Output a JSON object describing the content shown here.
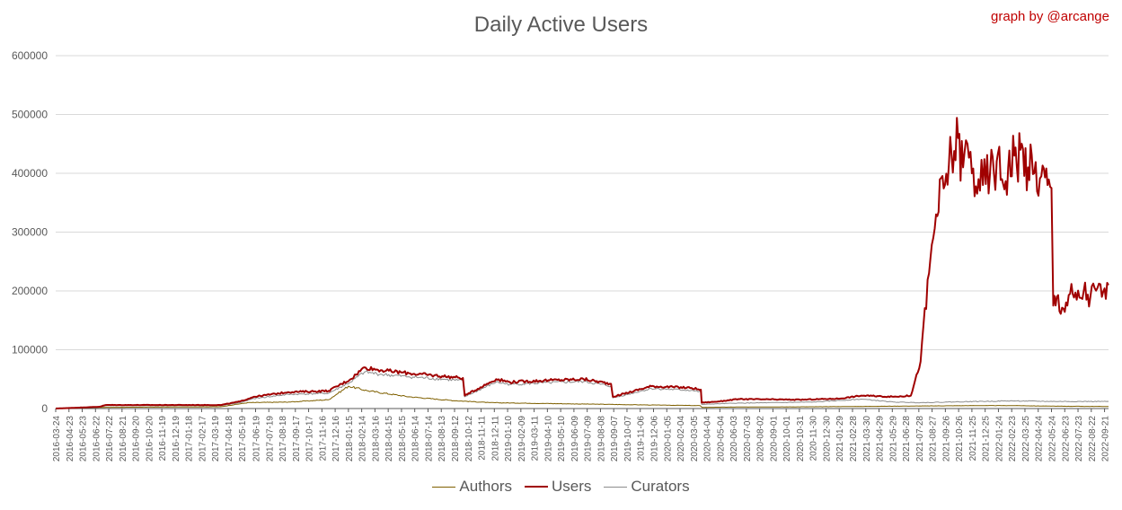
{
  "title": "Daily Active Users",
  "credit": "graph by @arcange",
  "colors": {
    "Authors": "#7f6000",
    "Users": "#a00000",
    "Curators": "#8c8c8c",
    "grid": "#d9d9d9",
    "axis": "#595959"
  },
  "chart_data": {
    "type": "line",
    "title": "Daily Active Users",
    "xlabel": "",
    "ylabel": "",
    "ylim": [
      0,
      600000
    ],
    "yticks": [
      "0",
      "100000",
      "200000",
      "300000",
      "400000",
      "500000",
      "600000"
    ],
    "xtick_labels": [
      "2016-03-24",
      "2016-04-23",
      "2016-05-23",
      "2016-06-22",
      "2016-07-22",
      "2016-08-21",
      "2016-09-20",
      "2016-10-20",
      "2016-11-19",
      "2016-12-19",
      "2017-01-18",
      "2017-02-17",
      "2017-03-19",
      "2017-04-18",
      "2017-05-19",
      "2017-06-19",
      "2017-07-19",
      "2017-08-18",
      "2017-09-17",
      "2017-10-17",
      "2017-11-16",
      "2017-12-16",
      "2018-01-15",
      "2018-02-14",
      "2018-03-16",
      "2018-04-15",
      "2018-05-15",
      "2018-06-14",
      "2018-07-14",
      "2018-08-13",
      "2018-09-12",
      "2018-10-12",
      "2018-11-11",
      "2018-12-11",
      "2019-01-10",
      "2019-02-09",
      "2019-03-11",
      "2019-04-10",
      "2019-05-10",
      "2019-06-09",
      "2019-07-09",
      "2019-08-08",
      "2019-09-07",
      "2019-10-07",
      "2019-11-06",
      "2019-12-06",
      "2020-01-05",
      "2020-02-04",
      "2020-03-05",
      "2020-04-04",
      "2020-05-04",
      "2020-06-03",
      "2020-07-03",
      "2020-08-02",
      "2020-09-01",
      "2020-10-01",
      "2020-10-31",
      "2020-11-30",
      "2020-12-30",
      "2021-01-29",
      "2021-02-28",
      "2021-03-30",
      "2021-04-29",
      "2021-05-29",
      "2021-06-28",
      "2021-07-28",
      "2021-08-27",
      "2021-09-26",
      "2021-10-26",
      "2021-11-25",
      "2021-12-25",
      "2022-01-24",
      "2022-02-23",
      "2022-03-25",
      "2022-04-24",
      "2022-05-24",
      "2022-06-23",
      "2022-07-23",
      "2022-08-22",
      "2022-09-21"
    ],
    "grid": true,
    "legend": "bottom",
    "series": [
      {
        "name": "Authors",
        "x": [
          "2016-03-24",
          "2016-07-01",
          "2017-04-01",
          "2017-06-01",
          "2017-09-01",
          "2017-12-01",
          "2018-01-15",
          "2018-03-01",
          "2018-06-01",
          "2018-09-01",
          "2018-12-01",
          "2019-03-01",
          "2019-06-01",
          "2019-09-01",
          "2019-12-01",
          "2020-03-20",
          "2020-03-25",
          "2020-06-01",
          "2020-12-01",
          "2021-06-01",
          "2021-09-01",
          "2021-12-01",
          "2022-03-01",
          "2022-06-01",
          "2022-09-30"
        ],
        "values": [
          0,
          2000,
          3000,
          10000,
          11000,
          15000,
          38000,
          30000,
          20000,
          14000,
          10000,
          9000,
          8000,
          7000,
          6000,
          5000,
          2000,
          2500,
          3000,
          4000,
          4500,
          5000,
          5000,
          4000,
          3500
        ]
      },
      {
        "name": "Users",
        "x": [
          "2016-03-24",
          "2016-07-01",
          "2016-07-15",
          "2017-04-01",
          "2017-05-15",
          "2017-06-15",
          "2017-09-01",
          "2017-12-01",
          "2018-01-20",
          "2018-02-20",
          "2018-04-01",
          "2018-06-01",
          "2018-08-15",
          "2018-10-01",
          "2018-10-05",
          "2018-12-15",
          "2019-01-15",
          "2019-04-15",
          "2019-07-01",
          "2019-09-01",
          "2019-09-05",
          "2019-12-01",
          "2020-03-01",
          "2020-03-22",
          "2020-03-24",
          "2020-05-01",
          "2020-06-15",
          "2020-11-01",
          "2021-02-01",
          "2021-03-20",
          "2021-06-01",
          "2021-07-10",
          "2021-08-01",
          "2021-08-20",
          "2021-09-05",
          "2021-09-25",
          "2021-10-10",
          "2021-10-25",
          "2021-11-05",
          "2021-11-15",
          "2021-11-25",
          "2021-12-10",
          "2021-12-20",
          "2022-01-05",
          "2022-01-20",
          "2022-02-01",
          "2022-02-15",
          "2022-03-01",
          "2022-03-15",
          "2022-04-01",
          "2022-04-15",
          "2022-05-01",
          "2022-05-15",
          "2022-05-24",
          "2022-05-28",
          "2022-06-05",
          "2022-06-20",
          "2022-07-05",
          "2022-07-20",
          "2022-08-05",
          "2022-08-20",
          "2022-09-05",
          "2022-09-15",
          "2022-09-30"
        ],
        "values": [
          0,
          3000,
          6000,
          6000,
          12000,
          20000,
          28000,
          30000,
          50000,
          70000,
          65000,
          60000,
          55000,
          52000,
          22000,
          50000,
          45000,
          48000,
          50000,
          42000,
          20000,
          38000,
          35000,
          32000,
          10000,
          12000,
          16000,
          15000,
          17000,
          22000,
          20000,
          22000,
          80000,
          230000,
          330000,
          380000,
          430000,
          460000,
          410000,
          450000,
          400000,
          390000,
          380000,
          400000,
          420000,
          390000,
          410000,
          430000,
          440000,
          410000,
          400000,
          395000,
          380000,
          375000,
          175000,
          190000,
          170000,
          195000,
          185000,
          200000,
          190000,
          205000,
          190000,
          210000
        ]
      },
      {
        "name": "Curators",
        "x": [
          "2016-03-24",
          "2016-07-01",
          "2016-07-15",
          "2017-04-01",
          "2017-05-15",
          "2017-06-15",
          "2017-09-01",
          "2017-12-01",
          "2018-01-20",
          "2018-02-20",
          "2018-04-01",
          "2018-06-01",
          "2018-08-15",
          "2018-10-01",
          "2018-10-05",
          "2018-12-15",
          "2019-01-15",
          "2019-04-15",
          "2019-07-01",
          "2019-09-01",
          "2019-09-05",
          "2019-12-01",
          "2020-03-01",
          "2020-03-22",
          "2020-03-24",
          "2020-06-01",
          "2020-12-01",
          "2021-03-20",
          "2021-06-01",
          "2021-08-01",
          "2021-10-01",
          "2021-12-01",
          "2022-03-01",
          "2022-06-01",
          "2022-09-30"
        ],
        "values": [
          0,
          2500,
          5000,
          5000,
          10000,
          17000,
          24000,
          26000,
          45000,
          62000,
          58000,
          54000,
          50000,
          47000,
          20000,
          45000,
          41000,
          44000,
          46000,
          38000,
          18000,
          34000,
          31000,
          28000,
          7000,
          9000,
          11000,
          16000,
          11000,
          10000,
          11000,
          12000,
          13000,
          12000,
          12000
        ]
      }
    ]
  }
}
